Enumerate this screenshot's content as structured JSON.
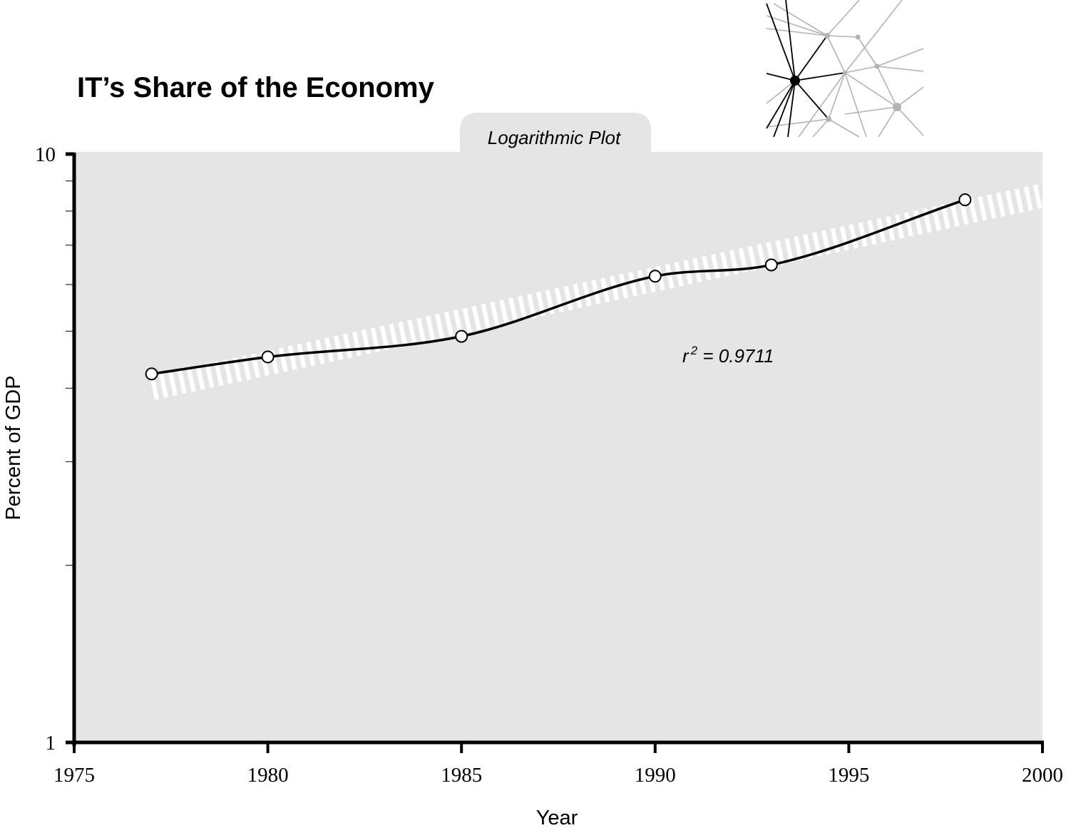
{
  "page_title": "IT’s Share of the Economy",
  "tab_label": "Logarithmic Plot",
  "logo": {
    "icon": "network-graph-icon"
  },
  "colors": {
    "plot_bg": "#e5e5e5",
    "line": "#000000",
    "trend": "#ffffff",
    "marker_fill": "#ffffff"
  },
  "annotation": {
    "r_symbol": "r",
    "r_superscript": "2",
    "r_value": " = 0.9711"
  },
  "chart_data": {
    "type": "line",
    "title": "IT’s Share of the Economy",
    "subtitle": "Logarithmic Plot",
    "xlabel": "Year",
    "ylabel": "Percent of GDP",
    "yscale": "log",
    "xlim": [
      1975,
      2000
    ],
    "ylim": [
      1,
      10
    ],
    "x_ticks": [
      "1975",
      "1980",
      "1985",
      "1990",
      "1995",
      "2000"
    ],
    "y_ticks": [
      "1",
      "10"
    ],
    "grid": false,
    "series": [
      {
        "x": [
          1977,
          1980,
          1985,
          1990,
          1993,
          1998
        ],
        "y": [
          4.23,
          4.52,
          4.9,
          6.2,
          6.48,
          8.36
        ]
      }
    ],
    "trend_line": {
      "x": [
        1977,
        2000
      ],
      "y": [
        4.0,
        8.5
      ]
    },
    "annotations": [
      "r² = 0.9711"
    ]
  }
}
